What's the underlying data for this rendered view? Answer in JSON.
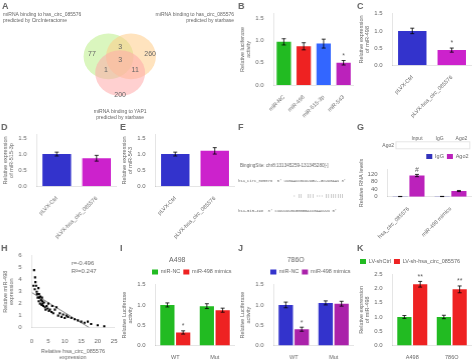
{
  "chart_data": [
    {
      "type": "venn",
      "title": "A",
      "series": [
        {
          "name": "miRNA binding to has_circ_085576\npredicted by CircInteractome",
          "color": "#bbee88"
        },
        {
          "name": "miRNA binding to has_circ_085576\npredicted by starbase",
          "color": "#ffcc88"
        },
        {
          "name": "miRNA binding to YAP1\npredicted by starbase",
          "color": "#ffaaaa"
        }
      ],
      "values": [
        77,
        260,
        200,
        3,
        1,
        11,
        3
      ]
    },
    {
      "type": "bar",
      "title": "B",
      "categories": [
        "miR-NC",
        "miR-498",
        "miR-515-3p",
        "miR-543"
      ],
      "values": [
        0.97,
        0.87,
        0.93,
        0.5
      ],
      "errors": [
        0.07,
        0.08,
        0.1,
        0.05
      ],
      "colors": [
        "#22bb22",
        "#ee2222",
        "#3366ff",
        "#bb22bb"
      ],
      "ylabel": "Relative luciferase activity",
      "ylim": [
        0,
        1.6
      ],
      "yticks": [
        {
          "value": 0,
          "label": "0.0"
        },
        0.5,
        {
          "value": 1,
          "label": "1.0"
        },
        1.5
      ],
      "grid": false,
      "annotations": [
        {
          "text": "*",
          "series": 0,
          "index": 3
        }
      ]
    },
    {
      "type": "bar",
      "title": "C",
      "categories": [
        "pLVX-Ctrl",
        "pLVX-hsa_circ_085576"
      ],
      "values": [
        1.0,
        0.44
      ],
      "errors": [
        0.08,
        0.06
      ],
      "colors": [
        "#3333cc",
        "#cc22cc"
      ],
      "ylabel": "Relative expression of miR-498",
      "ylim": [
        0,
        1.5
      ],
      "yticks": [
        {
          "value": 0,
          "label": "0.0"
        },
        0.5,
        {
          "value": 1,
          "label": "1.0"
        },
        1.5
      ],
      "grid": false,
      "annotations": [
        {
          "text": "*",
          "series": 0,
          "index": 1
        }
      ]
    },
    {
      "type": "bar",
      "title": "D",
      "categories": [
        "pLVX-Ctrl",
        "pLVX-hsa_circ_085576"
      ],
      "values": [
        1.0,
        0.87
      ],
      "errors": [
        0.06,
        0.09
      ],
      "colors": [
        "#3333cc",
        "#cc22cc"
      ],
      "ylabel": "Relative expression of miR-515-3p",
      "ylim": [
        0,
        1.6
      ],
      "yticks": [
        {
          "value": 0,
          "label": "0.0"
        },
        0.5,
        {
          "value": 1,
          "label": "1.0"
        },
        1.5
      ],
      "grid": false
    },
    {
      "type": "bar",
      "title": "E",
      "categories": [
        "pLVX-Ctrl",
        "pLVX-hsa_circ_085576"
      ],
      "values": [
        1.0,
        1.1
      ],
      "errors": [
        0.06,
        0.1
      ],
      "colors": [
        "#3333cc",
        "#cc22cc"
      ],
      "ylabel": "Relative expression of miR-543",
      "ylim": [
        0,
        1.6
      ],
      "yticks": [
        {
          "value": 0,
          "label": "0.0"
        },
        0.5,
        {
          "value": 1,
          "label": "1.0"
        },
        1.5
      ],
      "grid": false
    },
    {
      "type": "text",
      "title": "F",
      "annotations": [
        "BingingSite: chr8:131345259-131345280[-]",
        "hsa_circ_085576  5' uuGAACCGCUUUGU--GCUUGAAu 3'",
        "                        : ||  ||| ::: ||||||||",
        "hsa-miR-498  3' cuUUUUUGCGGGGGACCGAACUUu 5'"
      ]
    },
    {
      "type": "bar",
      "title": "G",
      "categories": [
        "hsa_circ_085576",
        "miR-498 mimics"
      ],
      "series": [
        {
          "name": "IgG",
          "color": "#3333bb",
          "values": [
            1.0,
            1.2
          ],
          "errors": [
            0.5,
            0.5
          ]
        },
        {
          "name": "Ago2",
          "color": "#bb22bb",
          "values": [
            112.0,
            30.0
          ],
          "errors": [
            6.0,
            3.0
          ]
        }
      ],
      "ylabel": "Relative RNA levels",
      "ylim": [
        0,
        145
      ],
      "yticks": [
        0,
        40,
        80,
        120
      ],
      "grid": false,
      "legend": "upper right",
      "blot_columns": [
        "Input",
        "IgG",
        "Ago2"
      ],
      "blot_rows": [
        "Ago2"
      ],
      "annotations": [
        {
          "text": "#",
          "series": 1,
          "index": 0
        }
      ]
    },
    {
      "type": "scatter",
      "title": "H",
      "xlabel": "Relative hsa_circ_085576 expression",
      "ylabel": "Relative miR-498 expression",
      "xlim": [
        0,
        25
      ],
      "ylim": [
        0,
        6
      ],
      "xticks": [
        0,
        5,
        10,
        15,
        20,
        25
      ],
      "yticks": [
        0,
        1,
        2,
        3,
        4,
        5,
        6
      ],
      "grid": false,
      "series": [
        {
          "type": "scatter",
          "color": "black",
          "marker": "square",
          "x": [
            0.5,
            0.7,
            0.9,
            1.0,
            1.1,
            1.3,
            1.5,
            1.6,
            1.8,
            2.0,
            2.1,
            2.2,
            2.3,
            2.5,
            2.6,
            2.8,
            3.0,
            3.1,
            3.2,
            3.3,
            3.5,
            3.7,
            4.0,
            4.2,
            4.5,
            4.8,
            5.0,
            5.2,
            5.5,
            6.0,
            6.2,
            6.5,
            7.0,
            7.5,
            8.0,
            8.5,
            9.0,
            9.5,
            10.0,
            10.5,
            11.0,
            12.0,
            13.0,
            14.0,
            15.0,
            16.0,
            17.0,
            18.0,
            20.0,
            22.0
          ],
          "values": [
            3.5,
            4.8,
            3.2,
            4.2,
            3.8,
            3.5,
            3.0,
            2.8,
            2.5,
            3.3,
            2.2,
            2.8,
            2.5,
            2.0,
            2.6,
            2.3,
            1.9,
            2.5,
            2.2,
            2.0,
            1.8,
            2.1,
            1.7,
            1.5,
            1.8,
            1.6,
            2.0,
            1.4,
            1.5,
            1.3,
            1.8,
            1.2,
            1.5,
            1.7,
            1.0,
            1.2,
            0.9,
            1.1,
            0.8,
            1.0,
            0.9,
            0.8,
            0.7,
            0.6,
            0.5,
            0.4,
            0.5,
            0.3,
            0.2,
            0.1
          ]
        },
        {
          "type": "line",
          "color": "gray",
          "line_style": "solid",
          "x": [
            0,
            17.449
          ],
          "values": [
            2.925,
            0
          ]
        }
      ],
      "annotations": [
        "r=-0.496",
        "R²=0.247"
      ]
    },
    {
      "type": "bar",
      "title": "I",
      "subtitle": "A498",
      "categories": [
        "WT",
        "Mut"
      ],
      "series": [
        {
          "name": "miR-NC",
          "color": "#22bb22",
          "values": [
            1.0,
            0.97
          ],
          "errors": [
            0.05,
            0.06
          ]
        },
        {
          "name": "miR-498 mimics",
          "color": "#ee2222",
          "values": [
            0.32,
            0.87
          ],
          "errors": [
            0.04,
            0.05
          ]
        }
      ],
      "ylabel": "Relative Luciferase activity",
      "ylim": [
        0,
        1.5
      ],
      "yticks": [
        {
          "value": 0,
          "label": "0.0"
        },
        0.5,
        {
          "value": 1,
          "label": "1.0"
        },
        1.5
      ],
      "grid": false,
      "legend": "upper right",
      "annotations": [
        {
          "text": "*",
          "series": 1,
          "index": 0
        }
      ]
    },
    {
      "type": "bar",
      "title": "J",
      "subtitle": "786O",
      "categories": [
        "WT",
        "Mut"
      ],
      "series": [
        {
          "name": "miR-NC",
          "color": "#3333cc",
          "values": [
            1.0,
            1.05
          ],
          "errors": [
            0.07,
            0.05
          ]
        },
        {
          "name": "miR-498 mimics",
          "color": "#aa22aa",
          "values": [
            0.4,
            1.03
          ],
          "errors": [
            0.05,
            0.06
          ]
        }
      ],
      "ylabel": "Relative Luciferase activity",
      "ylim": [
        0,
        1.5
      ],
      "yticks": [
        {
          "value": 0,
          "label": "0.0"
        },
        0.5,
        {
          "value": 1,
          "label": "1.0"
        },
        1.5
      ],
      "grid": false,
      "legend": "upper right",
      "annotations": [
        {
          "text": "*",
          "series": 1,
          "index": 0
        }
      ]
    },
    {
      "type": "bar",
      "title": "K",
      "categories": [
        "A498",
        "786O"
      ],
      "series": [
        {
          "name": "LV-shCtrl",
          "color": "#22bb22",
          "values": [
            1.0,
            1.0
          ],
          "errors": [
            0.05,
            0.06
          ]
        },
        {
          "name": "LV-sh-hsa_circ_085576",
          "color": "#ee2222",
          "values": [
            2.15,
            1.97
          ],
          "errors": [
            0.1,
            0.12
          ]
        }
      ],
      "ylabel": "Relative expression of miR-498",
      "ylim": [
        0,
        2.5
      ],
      "yticks": [
        {
          "value": 0,
          "label": "0.0"
        },
        0.5,
        {
          "value": 1,
          "label": "1.0"
        },
        1.5,
        {
          "value": 2,
          "label": "2.0"
        },
        2.5
      ],
      "grid": false,
      "legend": "upper left",
      "annotations": [
        {
          "text": "**",
          "series": 1,
          "index": 0
        },
        {
          "text": "**",
          "series": 1,
          "index": 1
        }
      ]
    }
  ]
}
